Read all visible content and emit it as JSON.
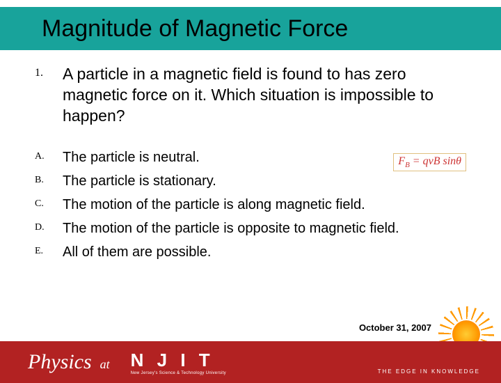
{
  "title": "Magnitude of Magnetic Force",
  "question": {
    "number": "1.",
    "text": "A particle in a magnetic field is found to has zero magnetic force on it. Which situation is impossible to happen?"
  },
  "options": [
    {
      "label": "A.",
      "text": "The particle is neutral."
    },
    {
      "label": "B.",
      "text": "The particle is stationary."
    },
    {
      "label": "C.",
      "text": "The motion of the particle is along magnetic field."
    },
    {
      "label": "D.",
      "text": "The motion of the particle is opposite to magnetic field."
    },
    {
      "label": "E.",
      "text": "All of them are possible."
    }
  ],
  "formula_html": "F<sub>B</sub> = qvB sinθ",
  "date": "October 31, 2007",
  "footer": {
    "physics": "Physics",
    "at": "at",
    "njit": "N J I T",
    "njit_sub": "New Jersey's Science & Technology University",
    "edge": "THE EDGE IN KNOWLEDGE"
  },
  "colors": {
    "title_bg": "#18a39b",
    "footer_bg": "#b22222",
    "text": "#000000",
    "footer_text": "#ffffff"
  }
}
